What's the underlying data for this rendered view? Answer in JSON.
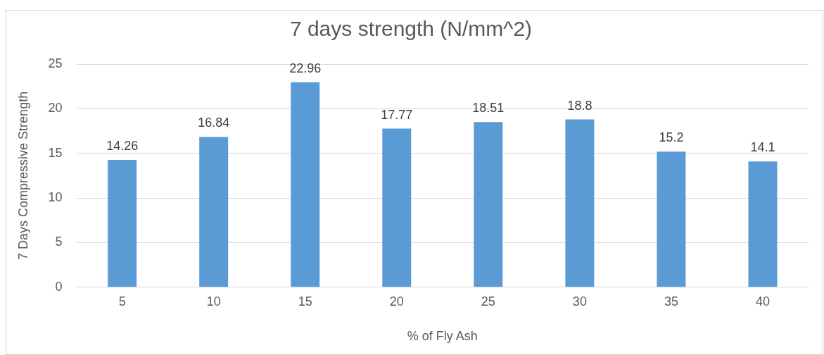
{
  "chart_data": {
    "type": "bar",
    "title": "7 days strength (N/mm^2)",
    "xlabel": "% of Fly Ash",
    "ylabel": "7 Days Compressive Strength",
    "categories": [
      "5",
      "10",
      "15",
      "20",
      "25",
      "30",
      "35",
      "40"
    ],
    "values": [
      14.26,
      16.84,
      22.96,
      17.77,
      18.51,
      18.8,
      15.2,
      14.1
    ],
    "color": "#5b9bd5",
    "ylim": [
      0,
      25
    ],
    "yticks": [
      0,
      5,
      10,
      15,
      20,
      25
    ],
    "grid": "y",
    "data_labels": true,
    "legend": false
  }
}
